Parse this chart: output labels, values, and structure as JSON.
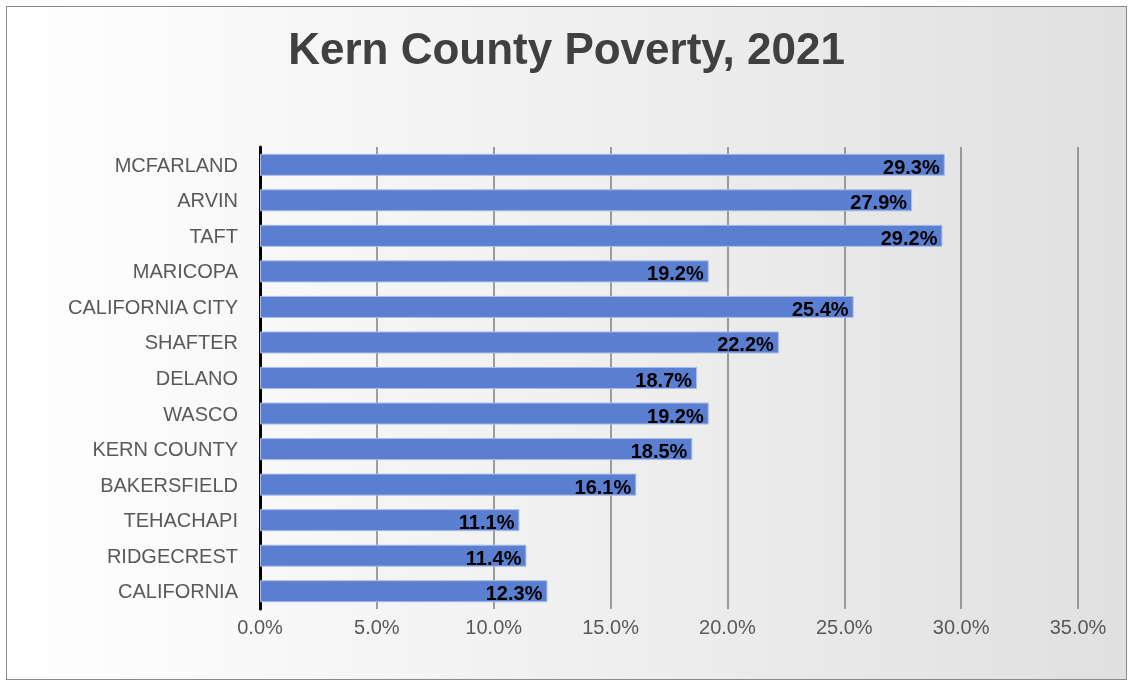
{
  "chart_data": {
    "type": "bar",
    "orientation": "horizontal",
    "title": "Kern County Poverty, 2021",
    "categories": [
      "MCFARLAND",
      "ARVIN",
      "TAFT",
      "MARICOPA",
      "CALIFORNIA CITY",
      "SHAFTER",
      "DELANO",
      "WASCO",
      "KERN COUNTY",
      "BAKERSFIELD",
      "TEHACHAPI",
      "RIDGECREST",
      "CALIFORNIA"
    ],
    "values": [
      29.3,
      27.9,
      29.2,
      19.2,
      25.4,
      22.2,
      18.7,
      19.2,
      18.5,
      16.1,
      11.1,
      11.4,
      12.3
    ],
    "value_labels": [
      "29.3%",
      "27.9%",
      "29.2%",
      "19.2%",
      "25.4%",
      "22.2%",
      "18.7%",
      "19.2%",
      "18.5%",
      "16.1%",
      "11.1%",
      "11.4%",
      "12.3%"
    ],
    "color": "#5b7fd0",
    "xlim": [
      0,
      35
    ],
    "xticks": [
      {
        "value": 0,
        "label": "0.0%"
      },
      {
        "value": 5,
        "label": "5.0%"
      },
      {
        "value": 10,
        "label": "10.0%"
      },
      {
        "value": 15,
        "label": "15.0%"
      },
      {
        "value": 20,
        "label": "20.0%"
      },
      {
        "value": 25,
        "label": "25.0%"
      },
      {
        "value": 30,
        "label": "30.0%"
      },
      {
        "value": 35,
        "label": "35.0%"
      }
    ],
    "grid": "x"
  }
}
